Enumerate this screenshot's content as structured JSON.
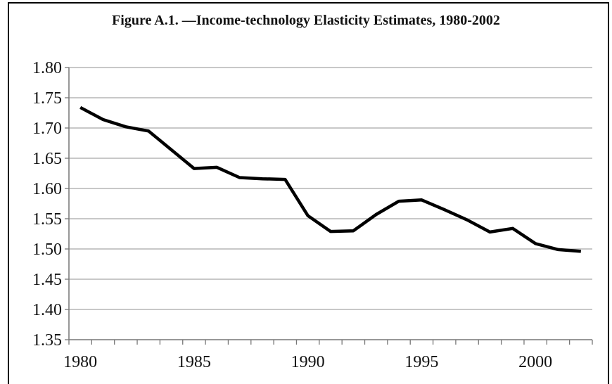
{
  "chart_data": {
    "type": "line",
    "title": "Figure A.1. —Income-technology Elasticity Estimates, 1980-2002",
    "xlabel": "",
    "ylabel": "",
    "x": [
      1980,
      1981,
      1982,
      1983,
      1984,
      1985,
      1986,
      1987,
      1988,
      1989,
      1990,
      1991,
      1992,
      1993,
      1994,
      1995,
      1996,
      1997,
      1998,
      1999,
      2000,
      2001,
      2002
    ],
    "series": [
      {
        "values": [
          1.734,
          1.714,
          1.702,
          1.695,
          1.664,
          1.633,
          1.635,
          1.618,
          1.616,
          1.615,
          1.555,
          1.529,
          1.53,
          1.557,
          1.579,
          1.581,
          1.565,
          1.548,
          1.528,
          1.534,
          1.509,
          1.499,
          1.496
        ]
      }
    ],
    "ylim": [
      1.35,
      1.8
    ],
    "xlim": [
      1980,
      2002
    ],
    "y_ticks": [
      "1.80",
      "1.75",
      "1.70",
      "1.65",
      "1.60",
      "1.55",
      "1.50",
      "1.45",
      "1.40",
      "1.35"
    ],
    "x_ticks": [
      "1980",
      "1985",
      "1990",
      "1995",
      "2000"
    ],
    "grid": "horizontal",
    "line_color": "#000000",
    "grid_color": "#a6a6a6"
  }
}
